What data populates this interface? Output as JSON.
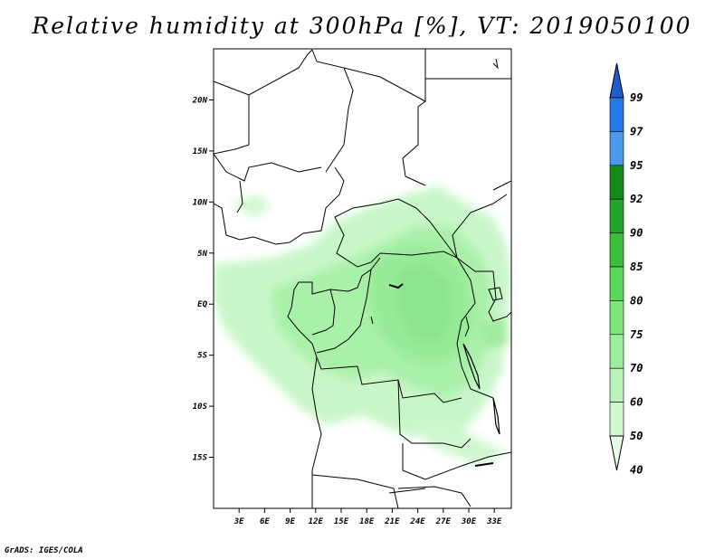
{
  "title": "Relative humidity at 300hPa [%], VT: 2019050100",
  "credit": "GrADS: IGES/COLA",
  "map": {
    "lon_range": [
      0,
      35
    ],
    "lat_range": [
      -20,
      25
    ],
    "x_ticks": [
      "3E",
      "6E",
      "9E",
      "12E",
      "15E",
      "18E",
      "21E",
      "24E",
      "27E",
      "30E",
      "33E"
    ],
    "y_ticks": [
      "20N",
      "15N",
      "10N",
      "5N",
      "EQ",
      "5S",
      "10S",
      "15S"
    ]
  },
  "colorbar": {
    "levels": [
      "99",
      "97",
      "95",
      "92",
      "90",
      "85",
      "80",
      "75",
      "70",
      "60",
      "50",
      "40"
    ],
    "colors": [
      "#1e5fd0",
      "#2878e6",
      "#4a9bee",
      "#12891a",
      "#22a52a",
      "#3bbf3b",
      "#5ad85a",
      "#7de67d",
      "#9cee9c",
      "#b9f3b9",
      "#d2f8d2",
      "#e9fbe9"
    ]
  }
}
